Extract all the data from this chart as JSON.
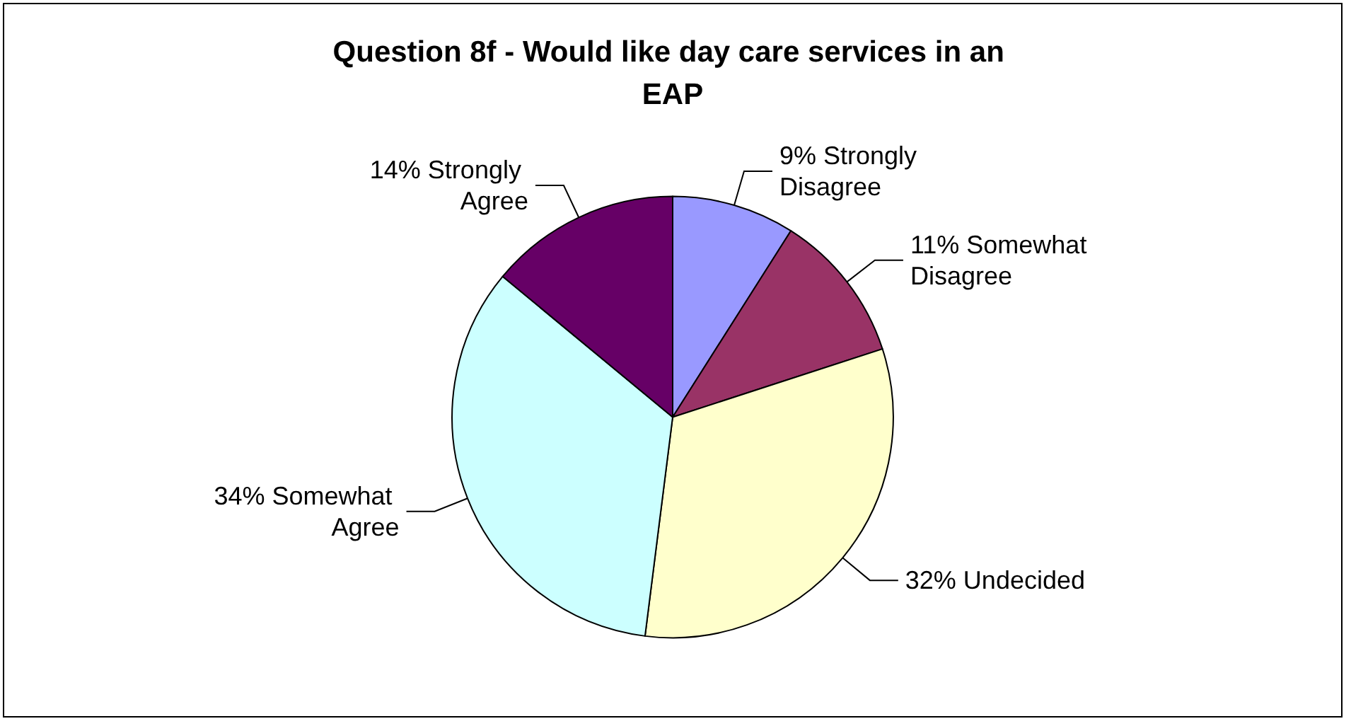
{
  "chart_data": {
    "type": "pie",
    "title": "Question 8f - Would like day care services in an EAP",
    "categories": [
      "Strongly Disagree",
      "Somewhat Disagree",
      "Undecided",
      "Somewhat Agree",
      "Strongly Agree"
    ],
    "values": [
      9,
      11,
      32,
      34,
      14
    ],
    "value_labels": [
      "9%",
      "11%",
      "32%",
      "34%",
      "14%"
    ],
    "colors": [
      "#9999ff",
      "#993366",
      "#ffffcc",
      "#ccffff",
      "#660066"
    ],
    "legend": false
  }
}
